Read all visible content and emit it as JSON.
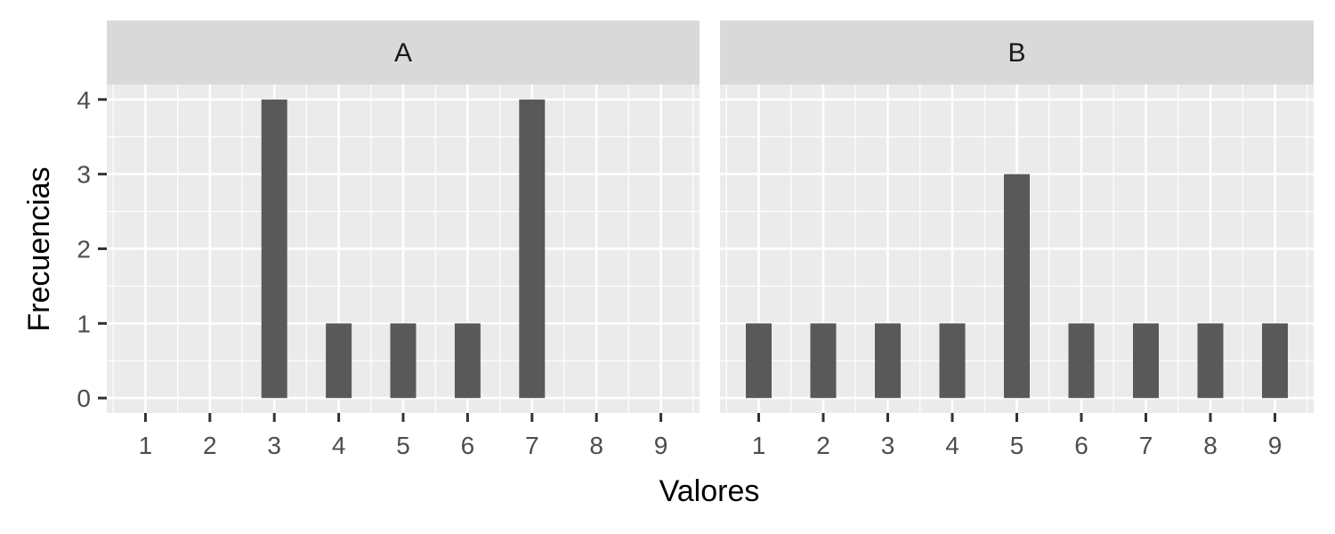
{
  "chart_data": {
    "type": "bar",
    "xlabel": "Valores",
    "ylabel": "Frecuencias",
    "xlim": [
      0.4,
      9.6
    ],
    "ylim": [
      -0.2,
      4.2
    ],
    "x_ticks": [
      1,
      2,
      3,
      4,
      5,
      6,
      7,
      8,
      9
    ],
    "y_ticks": [
      0,
      1,
      2,
      3,
      4
    ],
    "grid": true,
    "bar_color": "#595959",
    "panel_background": "#ebebeb",
    "strip_background": "#d9d9d9",
    "facets": [
      {
        "name": "A",
        "x": [
          1,
          2,
          3,
          4,
          5,
          6,
          7,
          8,
          9
        ],
        "values": [
          0,
          0,
          4,
          1,
          1,
          1,
          4,
          0,
          0
        ]
      },
      {
        "name": "B",
        "x": [
          1,
          2,
          3,
          4,
          5,
          6,
          7,
          8,
          9
        ],
        "values": [
          1,
          1,
          1,
          1,
          3,
          1,
          1,
          1,
          1
        ]
      }
    ]
  }
}
